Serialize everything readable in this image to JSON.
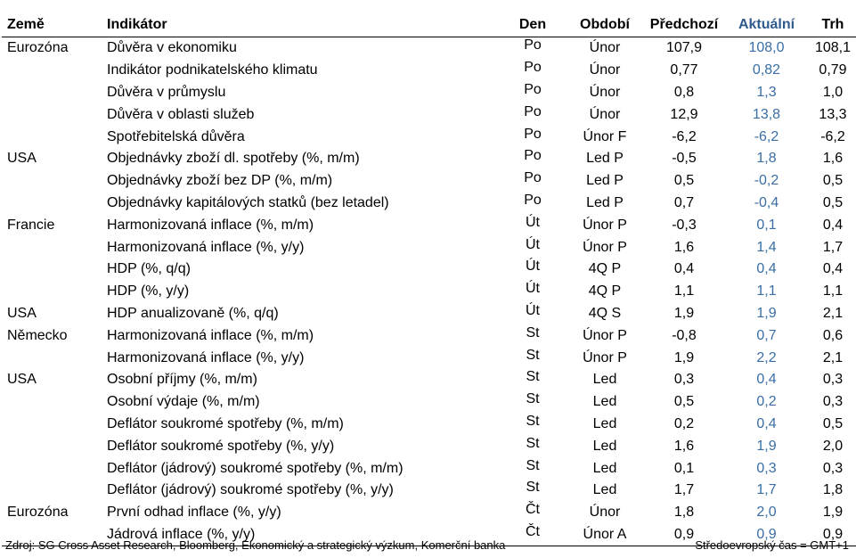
{
  "headers": {
    "zeme": "Země",
    "indikator": "Indikátor",
    "den": "Den",
    "obdobi": "Období",
    "predchozi": "Předchozí",
    "aktualni": "Aktuální",
    "trh": "Trh"
  },
  "accent_color": "#3a6ea5",
  "rows": [
    {
      "zeme": "Eurozóna",
      "indikator": "Důvěra v ekonomiku",
      "den": "Po",
      "obdobi": "Únor",
      "predchozi": "107,9",
      "aktualni": "108,0",
      "trh": "108,1"
    },
    {
      "zeme": "",
      "indikator": "Indikátor podnikatelského klimatu",
      "den": "Po",
      "obdobi": "Únor",
      "predchozi": "0,77",
      "aktualni": "0,82",
      "trh": "0,79"
    },
    {
      "zeme": "",
      "indikator": "Důvěra v průmyslu",
      "den": "Po",
      "obdobi": "Únor",
      "predchozi": "0,8",
      "aktualni": "1,3",
      "trh": "1,0"
    },
    {
      "zeme": "",
      "indikator": "Důvěra v oblasti služeb",
      "den": "Po",
      "obdobi": "Únor",
      "predchozi": "12,9",
      "aktualni": "13,8",
      "trh": "13,3"
    },
    {
      "zeme": "",
      "indikator": "Spotřebitelská důvěra",
      "den": "Po",
      "obdobi": "Únor F",
      "predchozi": "-6,2",
      "aktualni": "-6,2",
      "trh": "-6,2"
    },
    {
      "zeme": "USA",
      "indikator": "Objednávky zboží dl. spotřeby (%, m/m)",
      "den": "Po",
      "obdobi": "Led P",
      "predchozi": "-0,5",
      "aktualni": "1,8",
      "trh": "1,6"
    },
    {
      "zeme": "",
      "indikator": "Objednávky zboží bez DP (%, m/m)",
      "den": "Po",
      "obdobi": "Led P",
      "predchozi": "0,5",
      "aktualni": "-0,2",
      "trh": "0,5"
    },
    {
      "zeme": "",
      "indikator": "Objednávky kapitálových statků (bez letadel)",
      "den": "Po",
      "obdobi": "Led P",
      "predchozi": "0,7",
      "aktualni": "-0,4",
      "trh": "0,5"
    },
    {
      "zeme": "Francie",
      "indikator": "Harmonizovaná inflace (%, m/m)",
      "den": "Út",
      "obdobi": "Únor P",
      "predchozi": "-0,3",
      "aktualni": "0,1",
      "trh": "0,4"
    },
    {
      "zeme": "",
      "indikator": "Harmonizovaná inflace (%, y/y)",
      "den": "Út",
      "obdobi": "Únor P",
      "predchozi": "1,6",
      "aktualni": "1,4",
      "trh": "1,7"
    },
    {
      "zeme": "",
      "indikator": "HDP (%, q/q)",
      "den": "Út",
      "obdobi": "4Q P",
      "predchozi": "0,4",
      "aktualni": "0,4",
      "trh": "0,4"
    },
    {
      "zeme": "",
      "indikator": "HDP (%, y/y)",
      "den": "Út",
      "obdobi": "4Q P",
      "predchozi": "1,1",
      "aktualni": "1,1",
      "trh": "1,1"
    },
    {
      "zeme": "USA",
      "indikator": "HDP anualizovaně (%, q/q)",
      "den": "Út",
      "obdobi": "4Q S",
      "predchozi": "1,9",
      "aktualni": "1,9",
      "trh": "2,1"
    },
    {
      "zeme": "Německo",
      "indikator": "Harmonizovaná inflace (%, m/m)",
      "den": "St",
      "obdobi": "Únor P",
      "predchozi": "-0,8",
      "aktualni": "0,7",
      "trh": "0,6"
    },
    {
      "zeme": "",
      "indikator": "Harmonizovaná inflace (%, y/y)",
      "den": "St",
      "obdobi": "Únor P",
      "predchozi": "1,9",
      "aktualni": "2,2",
      "trh": "2,1"
    },
    {
      "zeme": "USA",
      "indikator": "Osobní příjmy (%, m/m)",
      "den": "St",
      "obdobi": "Led",
      "predchozi": "0,3",
      "aktualni": "0,4",
      "trh": "0,3"
    },
    {
      "zeme": "",
      "indikator": "Osobní výdaje (%, m/m)",
      "den": "St",
      "obdobi": "Led",
      "predchozi": "0,5",
      "aktualni": "0,2",
      "trh": "0,3"
    },
    {
      "zeme": "",
      "indikator": "Deflátor soukromé spotřeby (%, m/m)",
      "den": "St",
      "obdobi": "Led",
      "predchozi": "0,2",
      "aktualni": "0,4",
      "trh": "0,5"
    },
    {
      "zeme": "",
      "indikator": "Deflátor soukromé spotřeby (%, y/y)",
      "den": "St",
      "obdobi": "Led",
      "predchozi": "1,6",
      "aktualni": "1,9",
      "trh": "2,0"
    },
    {
      "zeme": "",
      "indikator": "Deflátor (jádrový) soukromé spotřeby (%, m/m)",
      "den": "St",
      "obdobi": "Led",
      "predchozi": "0,1",
      "aktualni": "0,3",
      "trh": "0,3"
    },
    {
      "zeme": "",
      "indikator": "Deflátor (jádrový) soukromé spotřeby (%, y/y)",
      "den": "St",
      "obdobi": "Led",
      "predchozi": "1,7",
      "aktualni": "1,7",
      "trh": "1,8"
    },
    {
      "zeme": "Eurozóna",
      "indikator": "První odhad inflace (%, y/y)",
      "den": "Čt",
      "obdobi": "Únor",
      "predchozi": "1,8",
      "aktualni": "2,0",
      "trh": "1,9"
    },
    {
      "zeme": "",
      "indikator": "Jádrová inflace (%, y/y)",
      "den": "Čt",
      "obdobi": "Únor A",
      "predchozi": "0,9",
      "aktualni": "0,9",
      "trh": "0,9"
    }
  ],
  "footer": {
    "source": "Zdroj: SG Cross Asset Research, Bloomberg, Ekonomický a strategický výzkum, Komerční banka",
    "timezone": "Středoevropský čas = GMT+1"
  }
}
